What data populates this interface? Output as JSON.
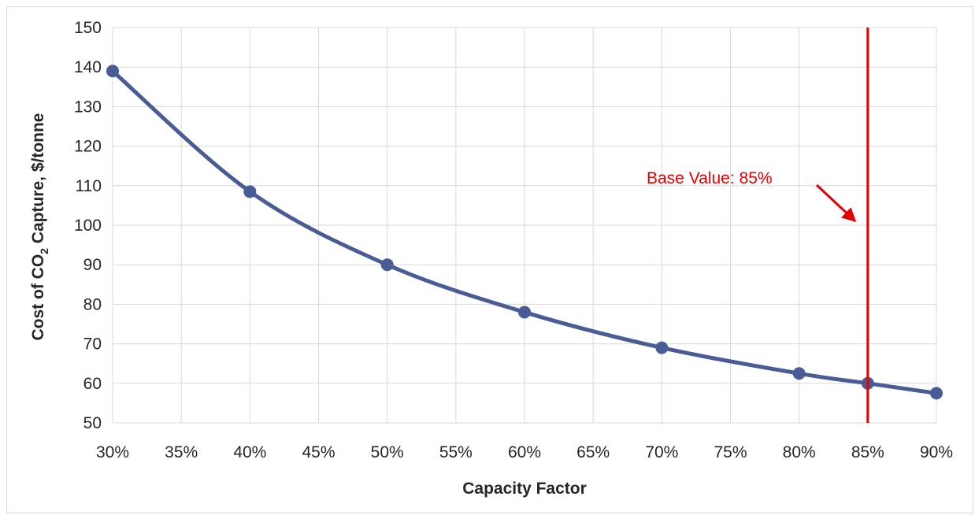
{
  "chart_data": {
    "type": "line",
    "xlabel": "Capacity Factor",
    "ylabel_parts": [
      "Cost of CO",
      "2",
      " Capture, $/tonne"
    ],
    "x_ticks": [
      "30%",
      "35%",
      "40%",
      "45%",
      "50%",
      "55%",
      "60%",
      "65%",
      "70%",
      "75%",
      "80%",
      "85%",
      "90%"
    ],
    "y_ticks": [
      "50",
      "60",
      "70",
      "80",
      "90",
      "100",
      "110",
      "120",
      "130",
      "140",
      "150"
    ],
    "xlim": [
      30,
      90
    ],
    "ylim": [
      50,
      150
    ],
    "grid": true,
    "series": [
      {
        "x": [
          30,
          40,
          50,
          60,
          70,
          80,
          85,
          90
        ],
        "y": [
          139,
          108.5,
          90,
          78,
          69,
          62.5,
          60,
          57.5
        ],
        "color": "#4a5c96"
      }
    ],
    "reference_line": {
      "x": 85,
      "color": "#e30000"
    },
    "annotation": {
      "text": "Base Value: 85%",
      "color": "#e30000"
    }
  }
}
